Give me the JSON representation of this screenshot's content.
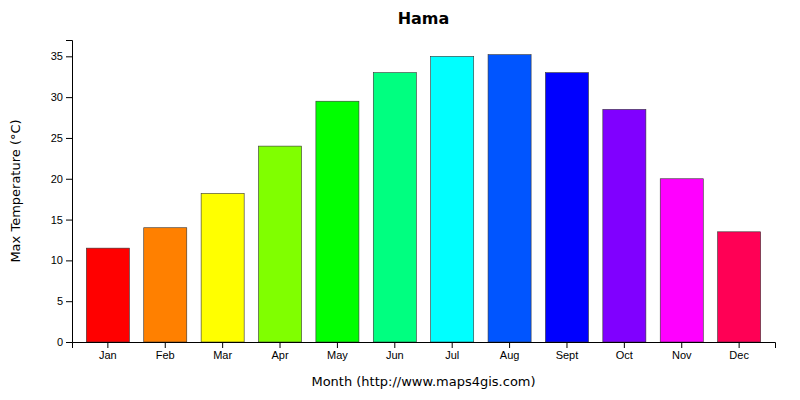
{
  "chart_data": {
    "type": "bar",
    "title": "Hama",
    "xlabel": "Month (http://www.maps4gis.com)",
    "ylabel": "Max Temperature (°C)",
    "categories": [
      "Jan",
      "Feb",
      "Mar",
      "Apr",
      "May",
      "Jun",
      "Jul",
      "Aug",
      "Sept",
      "Oct",
      "Nov",
      "Dec"
    ],
    "values": [
      11.5,
      14.0,
      18.2,
      24.0,
      29.5,
      33.0,
      35.0,
      35.2,
      33.0,
      28.5,
      20.0,
      13.5
    ],
    "colors": [
      "#ff0000",
      "#ff8000",
      "#ffff00",
      "#80ff00",
      "#00ff00",
      "#00ff80",
      "#00ffff",
      "#0055ff",
      "#0000ff",
      "#8000ff",
      "#ff00ff",
      "#ff0055"
    ],
    "ylim": [
      0,
      37
    ],
    "yticks": [
      0,
      5,
      10,
      15,
      20,
      25,
      30,
      35
    ],
    "grid": false
  }
}
